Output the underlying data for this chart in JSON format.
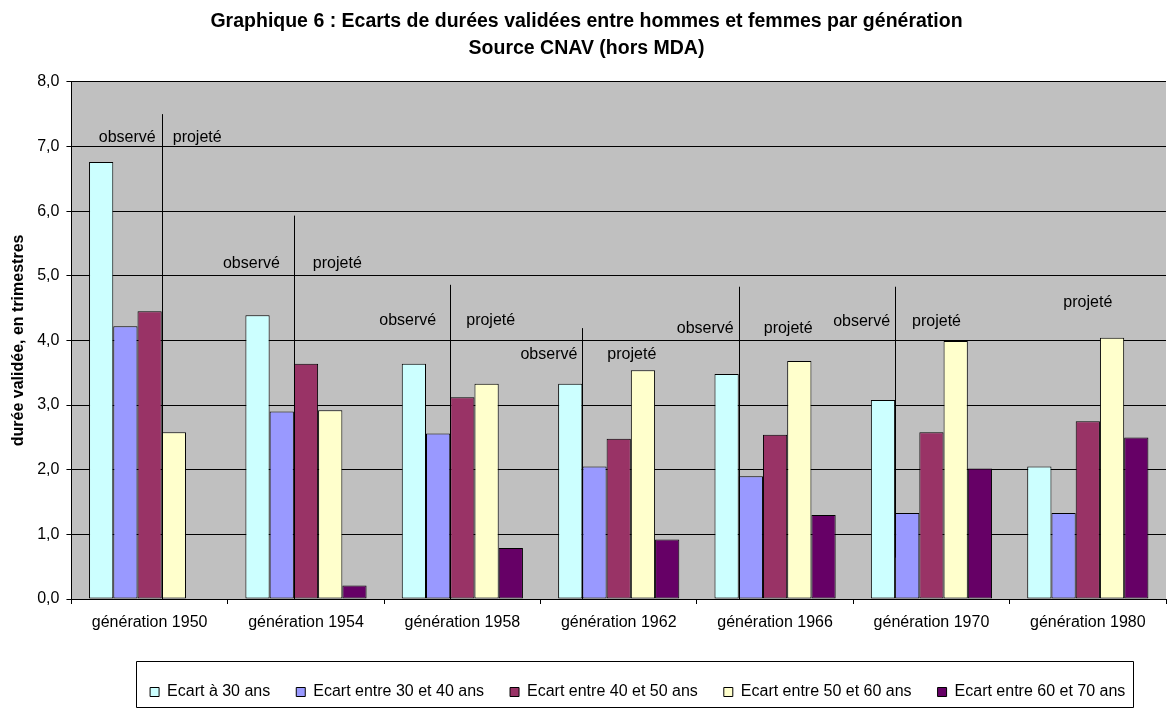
{
  "chart_data": {
    "type": "bar",
    "title": "Graphique 6 : Ecarts de durées validées entre hommes et femmes par génération",
    "subtitle": "Source CNAV (hors MDA)",
    "ylabel": "durée validée, en trimestres",
    "categories": [
      "génération 1950",
      "génération 1954",
      "génération 1958",
      "génération 1962",
      "génération 1966",
      "génération 1970",
      "génération 1980"
    ],
    "series": [
      {
        "name": "Ecart à 30 ans",
        "color": "#ccffff",
        "values": [
          6.76,
          4.39,
          3.64,
          3.33,
          3.48,
          3.08,
          2.05
        ]
      },
      {
        "name": "Ecart entre 30 et 40 ans",
        "color": "#9999ff",
        "values": [
          4.22,
          2.9,
          2.56,
          2.05,
          1.9,
          1.33,
          1.33
        ]
      },
      {
        "name": "Ecart entre 40 et 50 ans",
        "color": "#993366",
        "values": [
          4.45,
          3.64,
          3.12,
          2.48,
          2.54,
          2.58,
          2.75
        ]
      },
      {
        "name": "Ecart entre 50 et 60 ans",
        "color": "#ffffcc",
        "values": [
          2.58,
          2.92,
          3.33,
          3.54,
          3.68,
          3.99,
          4.04
        ]
      },
      {
        "name": "Ecart entre 60 et 70 ans",
        "color": "#660066",
        "values": [
          null,
          0.21,
          0.79,
          0.92,
          1.3,
          2.02,
          2.5
        ]
      }
    ],
    "ylim": [
      0,
      8
    ],
    "yticks": [
      {
        "value": 0,
        "label": "0,0"
      },
      {
        "value": 1,
        "label": "1,0"
      },
      {
        "value": 2,
        "label": "2,0"
      },
      {
        "value": 3,
        "label": "3,0"
      },
      {
        "value": 4,
        "label": "4,0"
      },
      {
        "value": 5,
        "label": "5,0"
      },
      {
        "value": 6,
        "label": "6,0"
      },
      {
        "value": 7,
        "label": "7,0"
      },
      {
        "value": 8,
        "label": "8,0"
      }
    ],
    "grid": "y",
    "legend": "bottom",
    "ref_lines": [
      {
        "axis": "x",
        "value": "génération 1950",
        "color": "#000000"
      },
      {
        "axis": "x",
        "value": "génération 1954",
        "color": "#000000"
      },
      {
        "axis": "x",
        "value": "génération 1958",
        "color": "#000000"
      },
      {
        "axis": "x",
        "value": "génération 1962",
        "color": "#000000"
      },
      {
        "axis": "x",
        "value": "génération 1966",
        "color": "#000000"
      },
      {
        "axis": "x",
        "value": "génération 1970",
        "color": "#000000"
      }
    ],
    "annotations": [
      "observé",
      "projeté",
      "observé",
      "projeté",
      "observé",
      "projeté",
      "observé",
      "projeté",
      "observé",
      "projeté",
      "observé",
      "projeté",
      "projeté"
    ]
  }
}
